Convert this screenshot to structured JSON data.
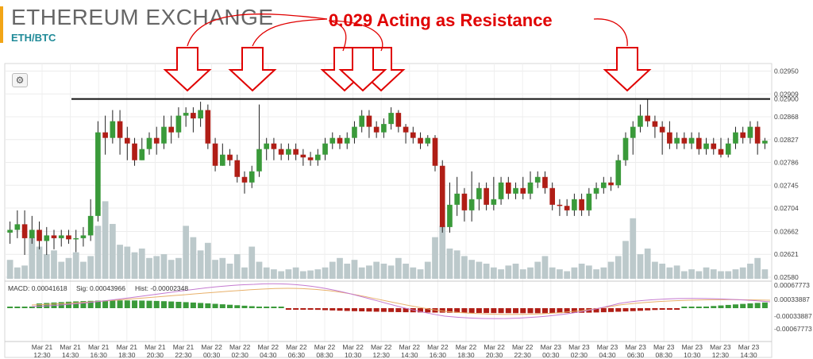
{
  "header": {
    "title": "ETHEREUM EXCHANGE",
    "subtitle": "ETH/BTC",
    "accent_color": "#f2a516",
    "subtitle_color": "#1f8a98",
    "settings_icon": "gear-icon"
  },
  "annotation": {
    "text": "0.029 Acting as Resistance",
    "color": "#e00000",
    "arrow_count": 6
  },
  "macd": {
    "macd_text": "MACD: 0.00041618",
    "sig_text": "Sig: 0.00043966",
    "hist_text": "Hist: -0.00002348",
    "ticks": [
      "0.00067773",
      "0.00033887",
      "-0.00033887",
      "-0.00067773"
    ]
  },
  "chart_data": {
    "type": "candlestick",
    "title": "",
    "xlabel": "",
    "ylabel": "",
    "ylim": [
      0.0258,
      0.02955
    ],
    "y_ticks": [
      "0.02950",
      "0.02909",
      "0.02868",
      "0.02827",
      "0.02786",
      "0.02745",
      "0.02704",
      "0.02662",
      "0.02621",
      "0.02580"
    ],
    "resistance": {
      "value": 0.029,
      "label": "0.02900"
    },
    "x_ticks": [
      {
        "day": "Mar 21",
        "time": "12:30"
      },
      {
        "day": "Mar 21",
        "time": "14:30"
      },
      {
        "day": "Mar 21",
        "time": "16:30"
      },
      {
        "day": "Mar 21",
        "time": "18:30"
      },
      {
        "day": "Mar 21",
        "time": "20:30"
      },
      {
        "day": "Mar 21",
        "time": "22:30"
      },
      {
        "day": "Mar 22",
        "time": "00:30"
      },
      {
        "day": "Mar 22",
        "time": "02:30"
      },
      {
        "day": "Mar 22",
        "time": "04:30"
      },
      {
        "day": "Mar 22",
        "time": "06:30"
      },
      {
        "day": "Mar 22",
        "time": "08:30"
      },
      {
        "day": "Mar 22",
        "time": "10:30"
      },
      {
        "day": "Mar 22",
        "time": "12:30"
      },
      {
        "day": "Mar 22",
        "time": "14:30"
      },
      {
        "day": "Mar 22",
        "time": "16:30"
      },
      {
        "day": "Mar 22",
        "time": "18:30"
      },
      {
        "day": "Mar 22",
        "time": "20:30"
      },
      {
        "day": "Mar 22",
        "time": "22:30"
      },
      {
        "day": "Mar 23",
        "time": "00:30"
      },
      {
        "day": "Mar 23",
        "time": "02:30"
      },
      {
        "day": "Mar 23",
        "time": "04:30"
      },
      {
        "day": "Mar 23",
        "time": "06:30"
      },
      {
        "day": "Mar 23",
        "time": "08:30"
      },
      {
        "day": "Mar 23",
        "time": "10:30"
      },
      {
        "day": "Mar 23",
        "time": "12:30"
      },
      {
        "day": "Mar 23",
        "time": "14:30"
      }
    ],
    "up_color": "#3a9a3a",
    "down_color": "#b01e16",
    "volume_color": "#bcc9cb",
    "candles": [
      [
        0.0266,
        0.02665,
        0.0264,
        0.0268
      ],
      [
        0.02665,
        0.02675,
        0.0265,
        0.027
      ],
      [
        0.02675,
        0.0265,
        0.0262,
        0.027
      ],
      [
        0.0265,
        0.02665,
        0.0264,
        0.0269
      ],
      [
        0.02665,
        0.02645,
        0.0263,
        0.0268
      ],
      [
        0.02645,
        0.02655,
        0.0262,
        0.0267
      ],
      [
        0.02655,
        0.0265,
        0.0263,
        0.02665
      ],
      [
        0.0265,
        0.02655,
        0.02635,
        0.02665
      ],
      [
        0.02655,
        0.02648,
        0.0264,
        0.02665
      ],
      [
        0.02648,
        0.0265,
        0.02625,
        0.02665
      ],
      [
        0.0265,
        0.02655,
        0.02635,
        0.0267
      ],
      [
        0.02655,
        0.0269,
        0.02645,
        0.0272
      ],
      [
        0.0269,
        0.0284,
        0.0268,
        0.0286
      ],
      [
        0.0284,
        0.0283,
        0.028,
        0.0287
      ],
      [
        0.0283,
        0.0286,
        0.0282,
        0.0288
      ],
      [
        0.0286,
        0.0283,
        0.028,
        0.0288
      ],
      [
        0.0283,
        0.0282,
        0.0279,
        0.0285
      ],
      [
        0.0282,
        0.0279,
        0.0278,
        0.0283
      ],
      [
        0.0279,
        0.0281,
        0.0279,
        0.0283
      ],
      [
        0.0281,
        0.0283,
        0.028,
        0.0284
      ],
      [
        0.0283,
        0.0282,
        0.028,
        0.0285
      ],
      [
        0.0282,
        0.0285,
        0.0281,
        0.0287
      ],
      [
        0.0285,
        0.0284,
        0.0282,
        0.0287
      ],
      [
        0.0284,
        0.0287,
        0.0283,
        0.02885
      ],
      [
        0.0287,
        0.02875,
        0.0285,
        0.02885
      ],
      [
        0.02875,
        0.02865,
        0.0284,
        0.02885
      ],
      [
        0.02865,
        0.0288,
        0.0285,
        0.02895
      ],
      [
        0.0288,
        0.0282,
        0.0281,
        0.0289
      ],
      [
        0.0282,
        0.0278,
        0.0277,
        0.0283
      ],
      [
        0.0278,
        0.028,
        0.0278,
        0.0282
      ],
      [
        0.028,
        0.0279,
        0.0278,
        0.0281
      ],
      [
        0.0279,
        0.0276,
        0.0275,
        0.028
      ],
      [
        0.0276,
        0.0275,
        0.0273,
        0.0277
      ],
      [
        0.0275,
        0.0277,
        0.0274,
        0.0278
      ],
      [
        0.0277,
        0.0281,
        0.0276,
        0.0289
      ],
      [
        0.0281,
        0.0282,
        0.0279,
        0.0283
      ],
      [
        0.0282,
        0.0281,
        0.0279,
        0.0283
      ],
      [
        0.0281,
        0.028,
        0.0279,
        0.0282
      ],
      [
        0.028,
        0.0281,
        0.0279,
        0.0282
      ],
      [
        0.0281,
        0.028,
        0.0279,
        0.0282
      ],
      [
        0.028,
        0.02795,
        0.0278,
        0.0281
      ],
      [
        0.02795,
        0.0279,
        0.0278,
        0.02805
      ],
      [
        0.0279,
        0.028,
        0.0278,
        0.0281
      ],
      [
        0.028,
        0.0282,
        0.0279,
        0.0283
      ],
      [
        0.0282,
        0.0283,
        0.0281,
        0.0284
      ],
      [
        0.0283,
        0.0282,
        0.0281,
        0.02835
      ],
      [
        0.0282,
        0.0283,
        0.0281,
        0.0284
      ],
      [
        0.0283,
        0.0285,
        0.0282,
        0.0286
      ],
      [
        0.0285,
        0.0287,
        0.0284,
        0.0288
      ],
      [
        0.0287,
        0.0285,
        0.0283,
        0.0288
      ],
      [
        0.0285,
        0.0284,
        0.0283,
        0.0286
      ],
      [
        0.0284,
        0.02855,
        0.0283,
        0.02865
      ],
      [
        0.02855,
        0.02875,
        0.02845,
        0.02885
      ],
      [
        0.02875,
        0.0285,
        0.0284,
        0.0288
      ],
      [
        0.0285,
        0.0284,
        0.0282,
        0.02855
      ],
      [
        0.0284,
        0.0283,
        0.0282,
        0.0285
      ],
      [
        0.0283,
        0.0282,
        0.0281,
        0.0284
      ],
      [
        0.0282,
        0.0283,
        0.02815,
        0.02835
      ],
      [
        0.0283,
        0.0278,
        0.0277,
        0.02835
      ],
      [
        0.0278,
        0.0267,
        0.0266,
        0.0279
      ],
      [
        0.0267,
        0.0271,
        0.0266,
        0.0275
      ],
      [
        0.0271,
        0.0273,
        0.0269,
        0.0276
      ],
      [
        0.0273,
        0.027,
        0.0268,
        0.0274
      ],
      [
        0.027,
        0.0272,
        0.0268,
        0.0277
      ],
      [
        0.0272,
        0.0274,
        0.027,
        0.0275
      ],
      [
        0.0274,
        0.0271,
        0.027,
        0.0275
      ],
      [
        0.0271,
        0.0272,
        0.027,
        0.0276
      ],
      [
        0.0272,
        0.0275,
        0.0271,
        0.0276
      ],
      [
        0.0275,
        0.0273,
        0.0272,
        0.0276
      ],
      [
        0.0273,
        0.0274,
        0.0272,
        0.0275
      ],
      [
        0.0274,
        0.0273,
        0.0272,
        0.0276
      ],
      [
        0.0273,
        0.0275,
        0.0272,
        0.0277
      ],
      [
        0.0275,
        0.0276,
        0.0274,
        0.0277
      ],
      [
        0.0276,
        0.0274,
        0.0273,
        0.0277
      ],
      [
        0.0274,
        0.0271,
        0.027,
        0.0275
      ],
      [
        0.0271,
        0.02708,
        0.0269,
        0.0272
      ],
      [
        0.02708,
        0.027,
        0.0269,
        0.0272
      ],
      [
        0.027,
        0.0272,
        0.0269,
        0.0273
      ],
      [
        0.0272,
        0.027,
        0.0269,
        0.0273
      ],
      [
        0.027,
        0.0273,
        0.0269,
        0.0274
      ],
      [
        0.0273,
        0.0274,
        0.0272,
        0.0275
      ],
      [
        0.0274,
        0.0275,
        0.0273,
        0.0276
      ],
      [
        0.0275,
        0.02745,
        0.02735,
        0.0276
      ],
      [
        0.02745,
        0.0279,
        0.0274,
        0.028
      ],
      [
        0.0279,
        0.0283,
        0.0278,
        0.0284
      ],
      [
        0.0283,
        0.0285,
        0.028,
        0.0286
      ],
      [
        0.0285,
        0.0287,
        0.0284,
        0.0289
      ],
      [
        0.0287,
        0.0286,
        0.0285,
        0.029
      ],
      [
        0.0286,
        0.0285,
        0.0283,
        0.0287
      ],
      [
        0.0285,
        0.0284,
        0.028,
        0.0286
      ],
      [
        0.0284,
        0.0282,
        0.0281,
        0.0286
      ],
      [
        0.0282,
        0.0283,
        0.0281,
        0.0284
      ],
      [
        0.0283,
        0.0282,
        0.0281,
        0.0284
      ],
      [
        0.0282,
        0.0283,
        0.0281,
        0.0284
      ],
      [
        0.0283,
        0.0281,
        0.028,
        0.0284
      ],
      [
        0.0281,
        0.0282,
        0.028,
        0.0283
      ],
      [
        0.0282,
        0.0281,
        0.028,
        0.0283
      ],
      [
        0.0281,
        0.028,
        0.02795,
        0.0283
      ],
      [
        0.028,
        0.0282,
        0.02795,
        0.0283
      ],
      [
        0.0282,
        0.0284,
        0.0281,
        0.0285
      ],
      [
        0.0284,
        0.0283,
        0.0282,
        0.0285
      ],
      [
        0.0283,
        0.0285,
        0.0282,
        0.0286
      ],
      [
        0.0285,
        0.0282,
        0.028,
        0.0286
      ],
      [
        0.0282,
        0.02825,
        0.0281,
        0.0283
      ]
    ],
    "volumes": [
      50,
      30,
      35,
      110,
      85,
      65,
      75,
      45,
      55,
      70,
      45,
      60,
      140,
      205,
      145,
      90,
      85,
      70,
      80,
      55,
      60,
      65,
      50,
      55,
      140,
      110,
      75,
      95,
      50,
      55,
      40,
      65,
      30,
      85,
      45,
      30,
      25,
      20,
      25,
      30,
      20,
      22,
      25,
      30,
      45,
      55,
      40,
      50,
      30,
      35,
      45,
      40,
      35,
      55,
      40,
      30,
      25,
      45,
      110,
      140,
      80,
      75,
      60,
      50,
      45,
      40,
      30,
      25,
      35,
      40,
      25,
      30,
      45,
      60,
      30,
      25,
      20,
      30,
      40,
      35,
      25,
      30,
      45,
      60,
      100,
      160,
      65,
      80,
      45,
      40,
      30,
      35,
      20,
      25,
      20,
      30,
      25,
      20,
      20,
      25,
      30,
      40,
      55,
      25
    ]
  }
}
